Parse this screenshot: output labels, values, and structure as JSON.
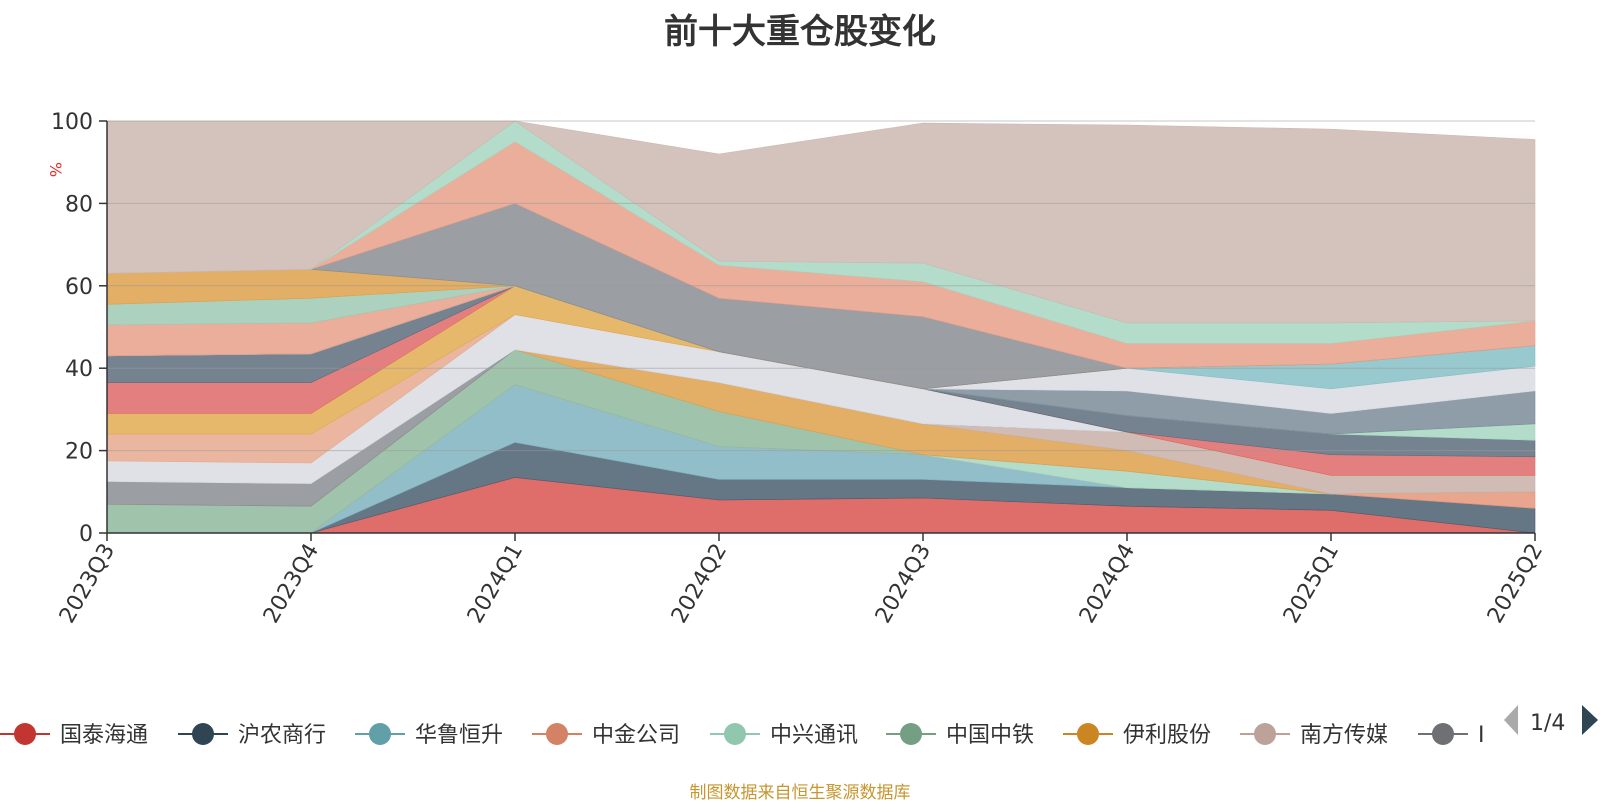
{
  "title": "前十大重仓股变化",
  "source_note": "制图数据来自恒生聚源数据库",
  "chart_data": {
    "type": "area",
    "stacked": true,
    "title": "前十大重仓股变化",
    "ylabel": "%",
    "ylim": [
      0,
      100
    ],
    "yticks": [
      0,
      20,
      40,
      60,
      80,
      100
    ],
    "grid": true,
    "legend_placement": "bottom",
    "legend_page": "1/4",
    "categories": [
      "2023Q3",
      "2023Q4",
      "2024Q1",
      "2024Q2",
      "2024Q3",
      "2024Q4",
      "2025Q1",
      "2025Q2"
    ],
    "series": [
      {
        "name": "国泰海通",
        "color": "#d9534f",
        "values": [
          0,
          0,
          13.5,
          8,
          8.5,
          6.5,
          5.5,
          0
        ]
      },
      {
        "name": "沪农商行",
        "color": "#4a5e70",
        "values": [
          0,
          0,
          8.5,
          5,
          4.5,
          4.5,
          4,
          6
        ]
      },
      {
        "name": "华鲁恒升",
        "color": "#7fb3c0",
        "values": [
          0,
          0,
          14,
          8,
          6,
          0,
          0,
          0
        ]
      },
      {
        "name": "中金公司",
        "color": "#e6957a",
        "values": [
          0,
          0,
          0,
          0,
          0,
          0,
          0,
          4
        ]
      },
      {
        "name": "中兴通讯",
        "color": "#a6d6c2",
        "values": [
          0,
          0,
          0,
          0,
          0,
          4,
          0,
          0
        ]
      },
      {
        "name": "中国中铁",
        "color": "#8fb89e",
        "values": [
          7,
          6.5,
          8.5,
          8.5,
          0,
          0,
          0,
          0
        ]
      },
      {
        "name": "伊利股份",
        "color": "#dea04a",
        "values": [
          0,
          0,
          0,
          7,
          7.5,
          5,
          0,
          0
        ]
      },
      {
        "name": "南方传媒",
        "color": "#c9b0a8",
        "values": [
          0,
          0,
          0,
          0,
          0,
          4.5,
          4.5,
          4
        ]
      },
      {
        "name": "",
        "color": "#8a8d93",
        "values": [
          5.5,
          5.5,
          0,
          0,
          0,
          0,
          0,
          0
        ]
      },
      {
        "name": "",
        "color": "#d9dce3",
        "values": [
          5,
          5,
          8.5,
          7.5,
          8.5,
          0,
          0,
          0
        ]
      },
      {
        "name": "",
        "color": "#e6a98e",
        "values": [
          6.5,
          7,
          0,
          0,
          0,
          0,
          0,
          0
        ]
      },
      {
        "name": "",
        "color": "#e1ab52",
        "values": [
          5,
          5,
          7,
          0,
          0,
          0,
          0,
          0
        ]
      },
      {
        "name": "",
        "color": "#de6a68",
        "values": [
          7.5,
          7.5,
          0,
          0,
          0,
          0,
          5,
          4.5
        ]
      },
      {
        "name": "",
        "color": "#5d6d7e",
        "values": [
          6.5,
          7,
          0,
          0,
          0,
          4,
          5,
          4
        ]
      },
      {
        "name": "",
        "color": "#a6d6c2",
        "values": [
          0,
          0,
          0,
          0,
          0,
          0,
          0,
          4
        ]
      },
      {
        "name": "",
        "color": "#7a8c99",
        "values": [
          0,
          0,
          0,
          0,
          0,
          6,
          5,
          8
        ]
      },
      {
        "name": "",
        "color": "#d9dce3",
        "values": [
          0,
          0,
          0,
          0,
          0,
          5.5,
          6,
          6
        ]
      },
      {
        "name": "",
        "color": "#86bfc6",
        "values": [
          0,
          0,
          0,
          0,
          0,
          0,
          6,
          5
        ]
      },
      {
        "name": "",
        "color": "#e6a08a",
        "values": [
          7.5,
          7.5,
          0,
          0,
          0,
          0,
          0,
          0
        ]
      },
      {
        "name": "",
        "color": "#9ec9b4",
        "values": [
          5,
          6,
          0,
          0,
          0,
          0,
          0,
          0
        ]
      },
      {
        "name": "",
        "color": "#dea04a",
        "values": [
          7.5,
          7,
          0,
          0,
          0,
          0,
          0,
          0
        ]
      },
      {
        "name": "",
        "color": "#8a8d93",
        "values": [
          0,
          0,
          20,
          13,
          17.5,
          0,
          0,
          0
        ]
      },
      {
        "name": "",
        "color": "#e6a08a",
        "values": [
          0,
          0,
          15,
          8,
          8.5,
          6,
          5,
          6
        ]
      },
      {
        "name": "",
        "color": "#a6d6c2",
        "values": [
          0,
          0,
          5,
          1,
          4.5,
          5,
          5,
          0
        ]
      },
      {
        "name": "",
        "color": "#cdb8b0",
        "values": [
          37,
          36,
          0,
          26,
          34,
          48,
          47,
          44
        ]
      }
    ]
  },
  "legend": {
    "items": [
      {
        "name": "国泰海通",
        "color": "#c23531"
      },
      {
        "name": "沪农商行",
        "color": "#2f4554"
      },
      {
        "name": "华鲁恒升",
        "color": "#61a0a8"
      },
      {
        "name": "中金公司",
        "color": "#d48265"
      },
      {
        "name": "中兴通讯",
        "color": "#91c7ae"
      },
      {
        "name": "中国中铁",
        "color": "#749f83"
      },
      {
        "name": "伊利股份",
        "color": "#ca8622"
      },
      {
        "name": "南方传媒",
        "color": "#bda29a"
      },
      {
        "name": "I",
        "color": "#6e7074"
      }
    ],
    "page": "1/4"
  }
}
